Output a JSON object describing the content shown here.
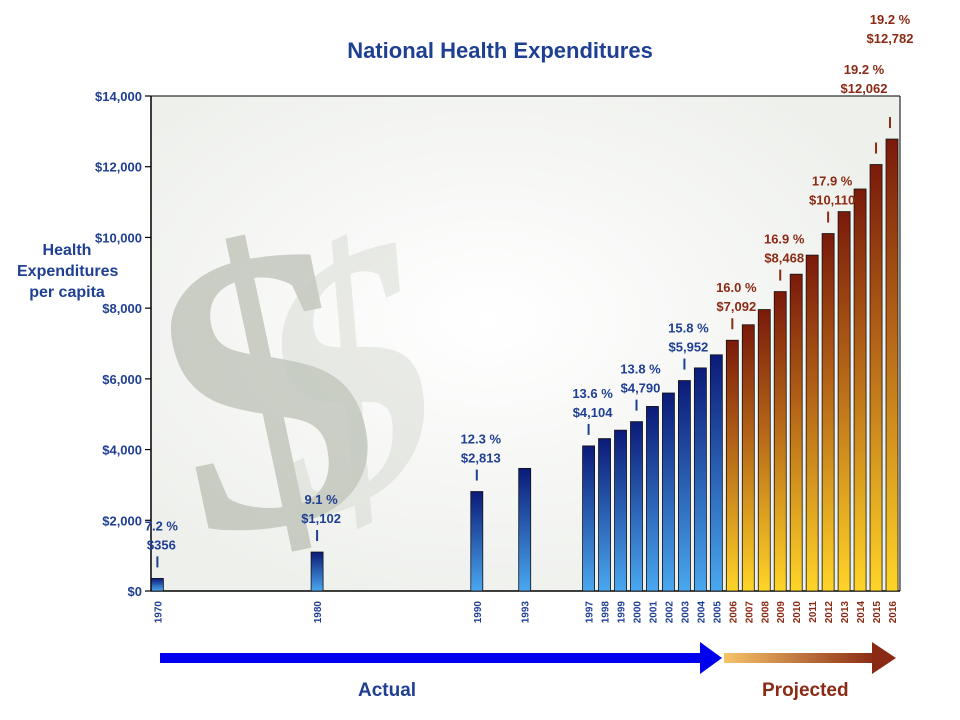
{
  "chart_data": {
    "type": "bar",
    "title": "National Health Expenditures",
    "ylabel": "Health Expenditures per capita",
    "xlabel": "",
    "ylim": [
      0,
      14000
    ],
    "yticks": [
      "$0",
      "$2,000",
      "$4,000",
      "$6,000",
      "$8,000",
      "$10,000",
      "$12,000",
      "$14,000"
    ],
    "grid": false,
    "categories": [
      "1970",
      "1980",
      "1990",
      "1993",
      "1997",
      "1998",
      "1999",
      "2000",
      "2001",
      "2002",
      "2003",
      "2004",
      "2005",
      "2006",
      "2007",
      "2008",
      "2009",
      "2010",
      "2011",
      "2012",
      "2013",
      "2014",
      "2015",
      "2016"
    ],
    "values": [
      356,
      1102,
      2813,
      3468,
      4104,
      4310,
      4549,
      4790,
      5220,
      5600,
      5952,
      6310,
      6680,
      7092,
      7530,
      7960,
      8468,
      8960,
      9500,
      10110,
      10730,
      11370,
      12062,
      12782
    ],
    "series_split": {
      "actual_count": 13,
      "actual_label": "Actual",
      "projected_label": "Projected"
    },
    "annotations": [
      {
        "year": "1970",
        "pct": "7.2 %",
        "amount": "$356",
        "group": "actual"
      },
      {
        "year": "1980",
        "pct": "9.1 %",
        "amount": "$1,102",
        "group": "actual"
      },
      {
        "year": "1990",
        "pct": "12.3 %",
        "amount": "$2,813",
        "group": "actual"
      },
      {
        "year": "1997",
        "pct": "13.6 %",
        "amount": "$4,104",
        "group": "actual"
      },
      {
        "year": "2000",
        "pct": "13.8 %",
        "amount": "$4,790",
        "group": "actual"
      },
      {
        "year": "2003",
        "pct": "15.8 %",
        "amount": "$5,952",
        "group": "actual"
      },
      {
        "year": "2006",
        "pct": "16.0 %",
        "amount": "$7,092",
        "group": "projected"
      },
      {
        "year": "2009",
        "pct": "16.9 %",
        "amount": "$8,468",
        "group": "projected"
      },
      {
        "year": "2012",
        "pct": "17.9 %",
        "amount": "$10,110",
        "group": "projected"
      },
      {
        "year": "2015",
        "pct": "19.2 %",
        "amount": "$12,062",
        "group": "projected"
      },
      {
        "year": "2016",
        "pct": "19.2 %",
        "amount": "$12,782",
        "group": "projected"
      }
    ],
    "colors": {
      "actual": "#1f3f93",
      "projected": "#8b2a14",
      "arrow_actual": "#0000ee"
    }
  }
}
